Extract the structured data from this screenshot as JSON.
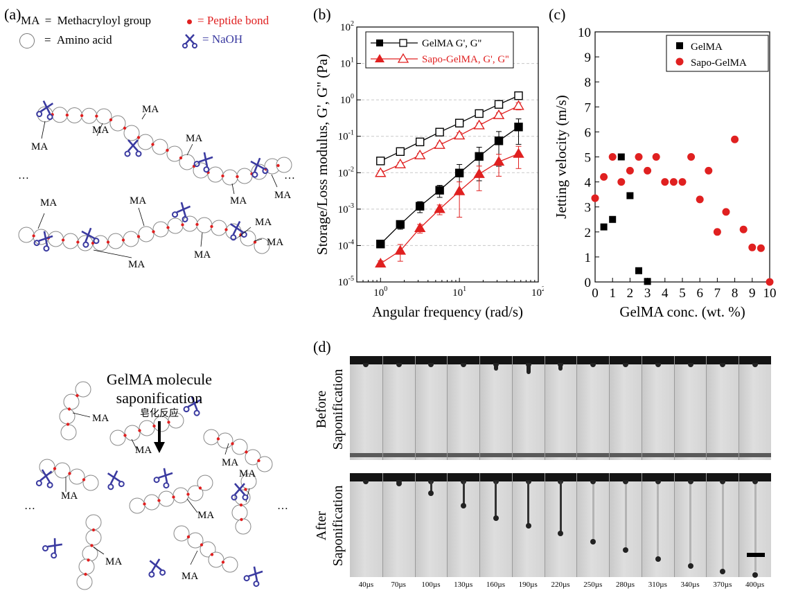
{
  "panels": {
    "a": {
      "label": "(a)",
      "legend": {
        "ma_key": "MA",
        "ma_eq": "=",
        "ma_text": "Methacryloyl group",
        "peptide_text": "= Peptide bond",
        "amino_eq": "=",
        "amino_text": "Amino acid",
        "naoh_text": "= NaOH"
      },
      "ma_label": "MA",
      "ellipsis": "…",
      "process_title_1": "GelMA molecule",
      "process_title_2": "saponification",
      "process_title_cn": "皂化反应",
      "colors": {
        "peptide": "#e02020",
        "scissors": "#3a3aa0",
        "naoh_text": "#3a3aa0",
        "peptide_text": "#e02020"
      }
    },
    "b": {
      "label": "(b)"
    },
    "c": {
      "label": "(c)"
    },
    "d": {
      "label": "(d)",
      "row_before_1": "Before",
      "row_before_2": "Saponification",
      "row_after_1": "After",
      "row_after_2": "Saponification",
      "times": [
        "40µs",
        "70µs",
        "100µs",
        "130µs",
        "160µs",
        "190µs",
        "220µs",
        "250µs",
        "280µs",
        "310µs",
        "340µs",
        "370µs",
        "400µs"
      ]
    }
  },
  "chart_data": [
    {
      "type": "line",
      "xlabel": "Angular frequency (rad/s)",
      "ylabel": "Storage/Loss modulus, G', G'' (Pa)",
      "x_scale": "log",
      "y_scale": "log",
      "xlim": [
        0.5,
        100
      ],
      "ylim": [
        1e-05,
        100
      ],
      "x_ticks": [
        {
          "v": 1,
          "m": "10",
          "e": "0"
        },
        {
          "v": 10,
          "m": "10",
          "e": "1"
        },
        {
          "v": 100,
          "m": "10",
          "e": "2"
        }
      ],
      "y_ticks": [
        {
          "v": 1e-05,
          "m": "10",
          "e": "-5"
        },
        {
          "v": 0.0001,
          "m": "10",
          "e": "-4"
        },
        {
          "v": 0.001,
          "m": "10",
          "e": "-3"
        },
        {
          "v": 0.01,
          "m": "10",
          "e": "-2"
        },
        {
          "v": 0.1,
          "m": "10",
          "e": "-1"
        },
        {
          "v": 1,
          "m": "10",
          "e": "0"
        },
        {
          "v": 10,
          "m": "10",
          "e": "1"
        },
        {
          "v": 100,
          "m": "10",
          "e": "2"
        }
      ],
      "grid": "horizontal dashed",
      "legend_position": "top-left",
      "legend": [
        "GelMA G', G''",
        "Sapo-GelMA, G', G''"
      ],
      "series": [
        {
          "legend": "GelMA G', G''",
          "role": "G'",
          "marker": "square-filled",
          "color": "#000000",
          "x": [
            1,
            1.78,
            3.16,
            5.62,
            10,
            17.8,
            31.6,
            56.2
          ],
          "y": [
            0.00011,
            0.00038,
            0.0012,
            0.0033,
            0.0098,
            0.028,
            0.075,
            0.18
          ],
          "err": [
            1.5e-05,
            0.0001,
            0.0004,
            0.0012,
            0.007,
            0.022,
            0.06,
            0.12
          ]
        },
        {
          "legend": "GelMA G', G''",
          "role": "G''",
          "marker": "square-open",
          "color": "#000000",
          "x": [
            1,
            1.78,
            3.16,
            5.62,
            10,
            17.8,
            31.6,
            56.2
          ],
          "y": [
            0.021,
            0.038,
            0.07,
            0.13,
            0.23,
            0.42,
            0.75,
            1.3
          ],
          "err": [
            0.003,
            0.004,
            0.008,
            0.012,
            0.05,
            0.08,
            0.12,
            0.2
          ]
        },
        {
          "legend": "Sapo-GelMA, G', G''",
          "role": "G'",
          "marker": "triangle-filled",
          "color": "#e02020",
          "x": [
            1,
            1.78,
            3.16,
            5.62,
            10,
            17.8,
            31.6,
            56.2
          ],
          "y": [
            3.2e-05,
            7.2e-05,
            0.0003,
            0.001,
            0.0031,
            0.0092,
            0.02,
            0.033
          ],
          "err": [
            6e-06,
            3.5e-05,
            8e-05,
            0.0003,
            0.0025,
            0.006,
            0.012,
            0.02
          ]
        },
        {
          "legend": "Sapo-GelMA, G', G''",
          "role": "G''",
          "marker": "triangle-open",
          "color": "#e02020",
          "x": [
            1,
            1.78,
            3.16,
            5.62,
            10,
            17.8,
            31.6,
            56.2
          ],
          "y": [
            0.0098,
            0.017,
            0.03,
            0.058,
            0.105,
            0.2,
            0.38,
            0.68
          ],
          "err": [
            0.0015,
            0.002,
            0.004,
            0.008,
            0.02,
            0.03,
            0.06,
            0.15
          ]
        }
      ]
    },
    {
      "type": "scatter",
      "xlabel": "GelMA conc. (wt. %)",
      "ylabel": "Jetting velocity (m/s)",
      "xlim": [
        0,
        10
      ],
      "ylim": [
        0,
        10
      ],
      "x_ticks": [
        0,
        1,
        2,
        3,
        4,
        5,
        6,
        7,
        8,
        9,
        10
      ],
      "y_ticks": [
        0,
        1,
        2,
        3,
        4,
        5,
        6,
        7,
        8,
        9,
        10
      ],
      "grid": false,
      "legend_position": "top-right",
      "series": [
        {
          "name": "GelMA",
          "marker": "square",
          "color": "#000000",
          "x": [
            0.5,
            1,
            1.5,
            2,
            2.5,
            3
          ],
          "y": [
            2.2,
            2.5,
            5.0,
            3.45,
            0.45,
            0.02
          ]
        },
        {
          "name": "Sapo-GelMA",
          "marker": "circle",
          "color": "#e02020",
          "x": [
            0,
            0.5,
            1,
            1.5,
            2,
            2.5,
            3,
            3.5,
            4,
            4.5,
            5,
            5.5,
            6,
            6.5,
            7,
            7.5,
            8,
            8.5,
            9,
            9.5,
            10
          ],
          "y": [
            3.35,
            4.2,
            5.0,
            4.0,
            4.45,
            5.0,
            4.45,
            5.0,
            4.0,
            4.0,
            4.0,
            5.0,
            3.3,
            4.45,
            2.0,
            2.8,
            5.7,
            2.1,
            1.38,
            1.35,
            0.0
          ]
        }
      ]
    }
  ]
}
